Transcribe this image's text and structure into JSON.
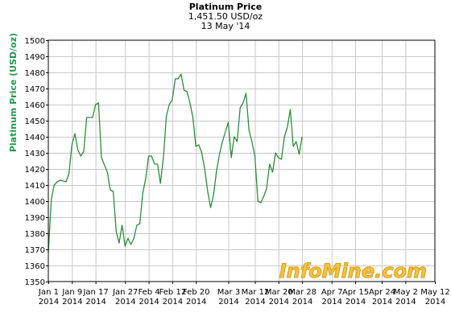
{
  "colors": {
    "line": "#2e8b3e",
    "ylabel": "#1f9a4a",
    "grid": "#c8c8c8",
    "axis": "#000000",
    "watermark_fill": "#f2c43d",
    "watermark_stroke": "#d89a1a"
  },
  "watermark": "InfoMine.com",
  "chart_data": {
    "type": "line",
    "title": "Platinum Price",
    "subtitle": "1,451.50 USD/oz",
    "date": "13 May '14",
    "ylabel": "Platinum Price (USD/oz)",
    "xlabel": "",
    "ylim": [
      1350,
      1500
    ],
    "yticks": [
      1350,
      1360,
      1370,
      1380,
      1390,
      1400,
      1410,
      1420,
      1430,
      1440,
      1450,
      1460,
      1470,
      1480,
      1490,
      1500
    ],
    "xlim": [
      "2014-01-01",
      "2014-05-12"
    ],
    "xticks": [
      {
        "date": "2014-01-01",
        "line1": "Jan 1",
        "line2": "2014"
      },
      {
        "date": "2014-01-09",
        "line1": "Jan 9",
        "line2": "2014"
      },
      {
        "date": "2014-01-17",
        "line1": "Jan 17",
        "line2": "2014"
      },
      {
        "date": "2014-01-27",
        "line1": "Jan 27",
        "line2": "2014"
      },
      {
        "date": "2014-02-04",
        "line1": "Feb 4",
        "line2": "2014"
      },
      {
        "date": "2014-02-12",
        "line1": "Feb 12",
        "line2": "2014"
      },
      {
        "date": "2014-02-20",
        "line1": "Feb 20",
        "line2": "2014"
      },
      {
        "date": "2014-03-03",
        "line1": "Mar 3",
        "line2": "2014"
      },
      {
        "date": "2014-03-12",
        "line1": "Mar 12",
        "line2": "2014"
      },
      {
        "date": "2014-03-20",
        "line1": "Mar 20",
        "line2": "2014"
      },
      {
        "date": "2014-03-28",
        "line1": "Mar 28",
        "line2": "2014"
      },
      {
        "date": "2014-04-07",
        "line1": "Apr 7",
        "line2": "2014"
      },
      {
        "date": "2014-04-15",
        "line1": "Apr 15",
        "line2": "2014"
      },
      {
        "date": "2014-04-24",
        "line1": "Apr 24",
        "line2": "2014"
      },
      {
        "date": "2014-05-02",
        "line1": "May 2",
        "line2": "2014"
      },
      {
        "date": "2014-05-12",
        "line1": "May 12",
        "line2": "2014"
      }
    ],
    "grid": true,
    "series": [
      {
        "points": [
          [
            "2014-01-01",
            1368
          ],
          [
            "2014-01-02",
            1401
          ],
          [
            "2014-01-03",
            1410
          ],
          [
            "2014-01-04",
            1412
          ],
          [
            "2014-01-05",
            1413
          ],
          [
            "2014-01-07",
            1412
          ],
          [
            "2014-01-08",
            1417
          ],
          [
            "2014-01-09",
            1435
          ],
          [
            "2014-01-10",
            1442
          ],
          [
            "2014-01-11",
            1432
          ],
          [
            "2014-01-12",
            1428
          ],
          [
            "2014-01-13",
            1431
          ],
          [
            "2014-01-14",
            1452
          ],
          [
            "2014-01-16",
            1452
          ],
          [
            "2014-01-17",
            1460
          ],
          [
            "2014-01-18",
            1461
          ],
          [
            "2014-01-19",
            1427
          ],
          [
            "2014-01-21",
            1418
          ],
          [
            "2014-01-22",
            1407
          ],
          [
            "2014-01-23",
            1406
          ],
          [
            "2014-01-24",
            1381
          ],
          [
            "2014-01-25",
            1374
          ],
          [
            "2014-01-26",
            1385
          ],
          [
            "2014-01-27",
            1372
          ],
          [
            "2014-01-28",
            1377
          ],
          [
            "2014-01-29",
            1373
          ],
          [
            "2014-01-30",
            1377
          ],
          [
            "2014-01-31",
            1385
          ],
          [
            "2014-02-01",
            1386
          ],
          [
            "2014-02-02",
            1405
          ],
          [
            "2014-02-03",
            1414
          ],
          [
            "2014-02-04",
            1428
          ],
          [
            "2014-02-05",
            1428
          ],
          [
            "2014-02-06",
            1423
          ],
          [
            "2014-02-07",
            1423
          ],
          [
            "2014-02-08",
            1411
          ],
          [
            "2014-02-09",
            1427
          ],
          [
            "2014-02-10",
            1453
          ],
          [
            "2014-02-11",
            1460
          ],
          [
            "2014-02-12",
            1463
          ],
          [
            "2014-02-13",
            1476
          ],
          [
            "2014-02-14",
            1476
          ],
          [
            "2014-02-15",
            1479
          ],
          [
            "2014-02-16",
            1469
          ],
          [
            "2014-02-17",
            1468
          ],
          [
            "2014-02-18",
            1461
          ],
          [
            "2014-02-19",
            1452
          ],
          [
            "2014-02-20",
            1434
          ],
          [
            "2014-02-21",
            1435
          ],
          [
            "2014-02-22",
            1430
          ],
          [
            "2014-02-23",
            1420
          ],
          [
            "2014-02-24",
            1406
          ],
          [
            "2014-02-25",
            1396
          ],
          [
            "2014-02-26",
            1404
          ],
          [
            "2014-02-27",
            1419
          ],
          [
            "2014-02-28",
            1429
          ],
          [
            "2014-03-01",
            1437
          ],
          [
            "2014-03-02",
            1443
          ],
          [
            "2014-03-03",
            1449
          ],
          [
            "2014-03-04",
            1427
          ],
          [
            "2014-03-05",
            1440
          ],
          [
            "2014-03-06",
            1437
          ],
          [
            "2014-03-07",
            1458
          ],
          [
            "2014-03-08",
            1461
          ],
          [
            "2014-03-09",
            1467
          ],
          [
            "2014-03-10",
            1444
          ],
          [
            "2014-03-11",
            1437
          ],
          [
            "2014-03-12",
            1428
          ],
          [
            "2014-03-13",
            1400
          ],
          [
            "2014-03-14",
            1399
          ],
          [
            "2014-03-15",
            1403
          ],
          [
            "2014-03-16",
            1408
          ],
          [
            "2014-03-17",
            1423
          ],
          [
            "2014-03-18",
            1418
          ],
          [
            "2014-03-19",
            1430
          ],
          [
            "2014-03-20",
            1427
          ],
          [
            "2014-03-21",
            1426
          ],
          [
            "2014-03-22",
            1440
          ],
          [
            "2014-03-23",
            1446
          ],
          [
            "2014-03-24",
            1457
          ],
          [
            "2014-03-25",
            1434
          ],
          [
            "2014-03-26",
            1437
          ],
          [
            "2014-03-27",
            1429
          ],
          [
            "2014-03-28",
            1440
          ]
        ]
      }
    ]
  }
}
